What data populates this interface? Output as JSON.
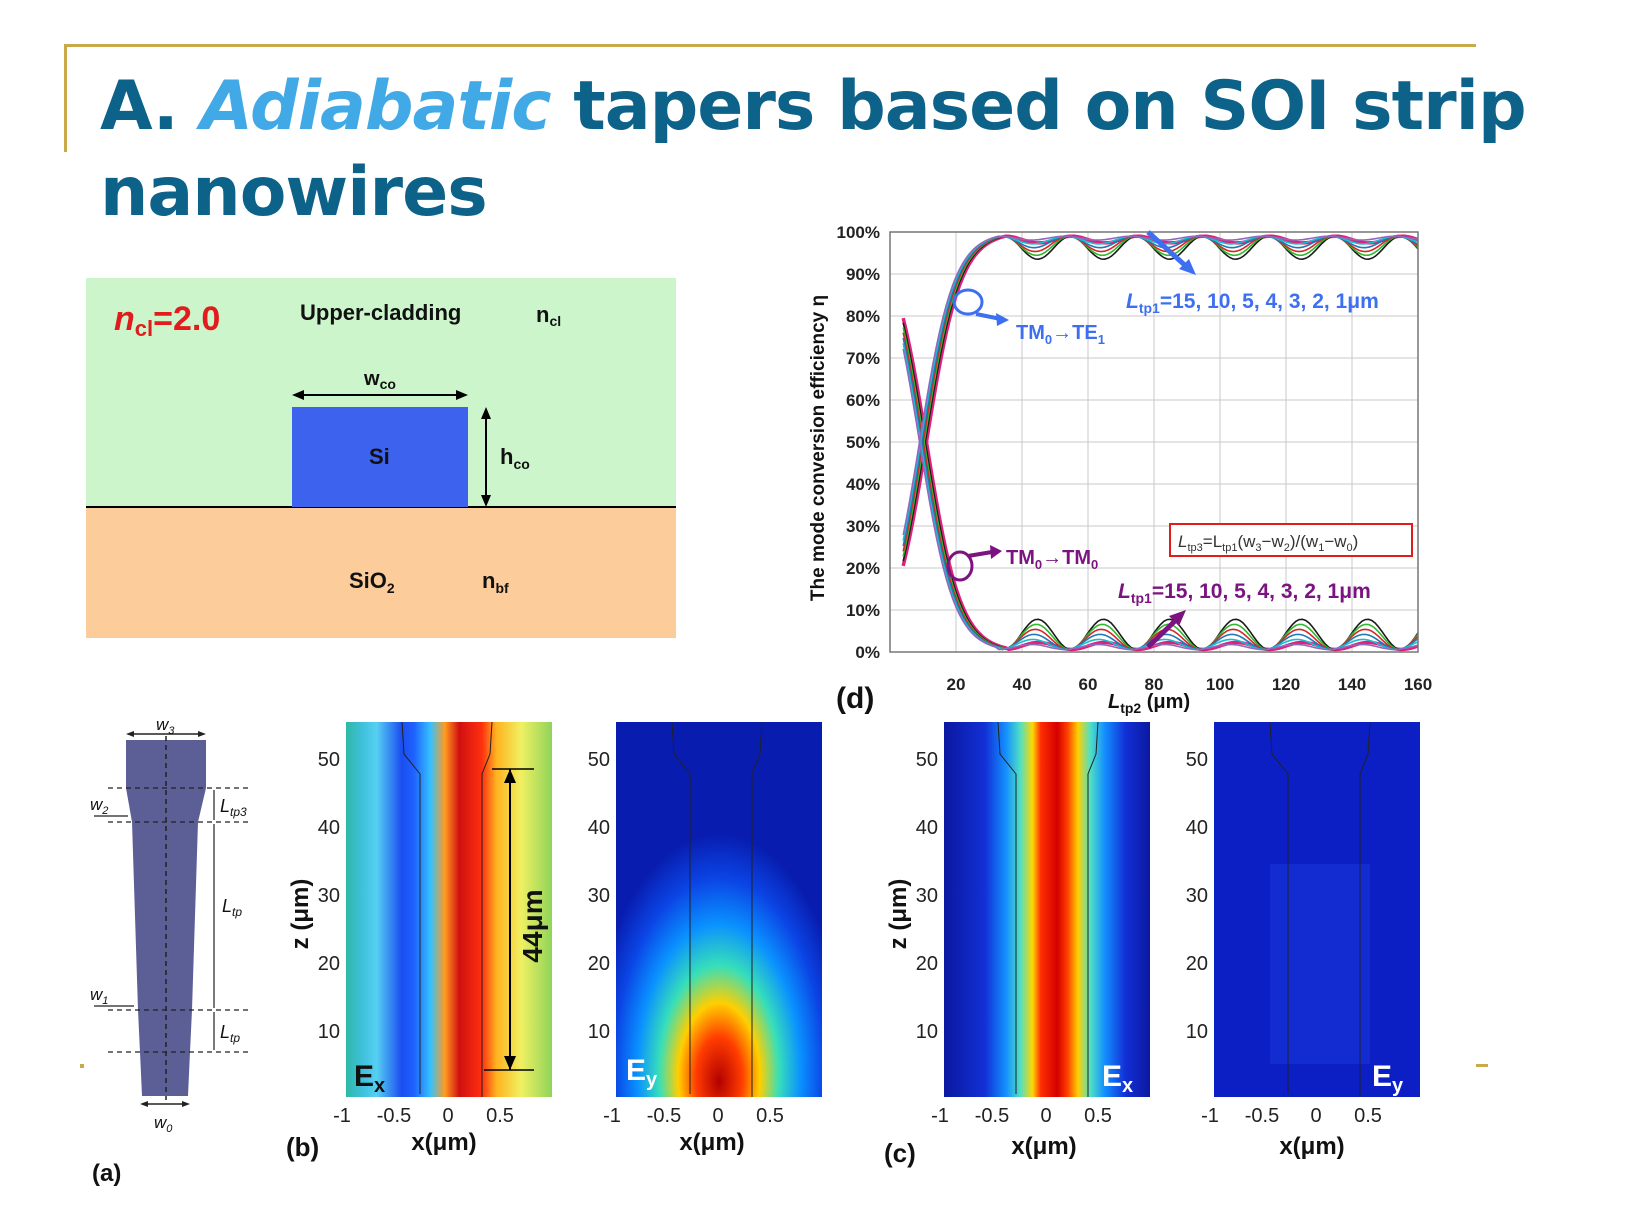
{
  "slide": {
    "title_prefix": "A.",
    "title_highlight": "Adiabatic",
    "title_rest": "tapers based on SOI strip",
    "title_line2": "nanowires",
    "accent_color": "#c9a94a",
    "title_color": "#0d6289",
    "highlight_color": "#41a9e6"
  },
  "cross_section": {
    "ncl_label": "n",
    "ncl_sub": "cl",
    "ncl_value": "=2.0",
    "upper_label": "Upper-cladding",
    "ncl_text": "n",
    "ncl_text_sub": "cl",
    "wco": "w",
    "wco_sub": "co",
    "core": "Si",
    "hco": "h",
    "hco_sub": "co",
    "substrate": "SiO",
    "substrate_sub": "2",
    "nbf": "n",
    "nbf_sub": "bf",
    "colors": {
      "cladding": "#ccf5cc",
      "core": "#3d62ee",
      "substrate": "#fdcc9b"
    }
  },
  "taper": {
    "w3": "w",
    "w3_sub": "3",
    "w2": "w",
    "w2_sub": "2",
    "w1": "w",
    "w1_sub": "1",
    "w0": "w",
    "w0_sub": "0",
    "ltp3": "L",
    "ltp3_sub": "tp3",
    "ltp_a": "L",
    "ltp_a_sub": "tp",
    "ltp_b": "L",
    "ltp_b_sub": "tp",
    "panel_label": "(a)",
    "fill_color": "#5b5f96"
  },
  "panel_b": {
    "label": "(b)",
    "ylabel": "z (μm)",
    "xlabel": "x(μm)",
    "ex": "E",
    "ex_sub": "x",
    "ey": "E",
    "ey_sub": "y",
    "length_annotation": "44μm",
    "yticks": [
      "50",
      "40",
      "30",
      "20",
      "10"
    ],
    "xticks": [
      "-1",
      "-0.5",
      "0",
      "0.5"
    ]
  },
  "panel_c": {
    "label": "(c)",
    "ylabel": "z (μm)",
    "xlabel": "x(μm)",
    "ex": "E",
    "ex_sub": "x",
    "ey": "E",
    "ey_sub": "y",
    "yticks": [
      "50",
      "40",
      "30",
      "20",
      "10"
    ],
    "xticks": [
      "-1",
      "-0.5",
      "0",
      "0.5"
    ]
  },
  "panel_d": {
    "label": "(d)",
    "ylabel": "The mode conversion efficiency η",
    "xlabel": "L",
    "xlabel_sub": "tp2",
    "xlabel_unit": " (μm)",
    "yticks": [
      "100%",
      "90%",
      "80%",
      "70%",
      "60%",
      "50%",
      "40%",
      "30%",
      "20%",
      "10%",
      "0%"
    ],
    "xticks": [
      "20",
      "40",
      "60",
      "80",
      "100",
      "120",
      "140",
      "160"
    ],
    "te_label": "TM",
    "te_label_sub": "0",
    "te_label_rest": "→TE",
    "te_label_sub2": "1",
    "tm_label": "TM",
    "tm_label_sub": "0",
    "tm_label_rest": "→TM",
    "tm_label_sub2": "0",
    "ltp1_top": "=15, 10, 5, 4, 3, 2, 1μm",
    "ltp1_bottom": "=15, 10, 5, 4, 3, 2, 1μm",
    "ltp1_name": "L",
    "ltp1_sub": "tp1",
    "formula": "L",
    "formula_sub1": "tp3",
    "formula_mid": "=L",
    "formula_sub2": "tp1",
    "formula_rest": "(w",
    "formula_w3": "3",
    "formula_m": "−w",
    "formula_w2": "2",
    "formula_d": ")/(w",
    "formula_w1": "1",
    "formula_m2": "−w",
    "formula_w0": "0",
    "formula_end": ")"
  },
  "chart_data": {
    "type": "line",
    "title": "",
    "xlabel": "Ltp2 (μm)",
    "ylabel": "The mode conversion efficiency η",
    "xlim": [
      0,
      160
    ],
    "ylim": [
      0,
      100
    ],
    "grid": true,
    "series_colors": [
      "#e0207a",
      "#1a1a1a",
      "#2db82d",
      "#d62728",
      "#1f77b4",
      "#17becf",
      "#9467bd",
      "#ff7f0e"
    ],
    "series_legend": [
      "15",
      "10",
      "5",
      "4",
      "3",
      "2",
      "1"
    ],
    "series_groups": [
      {
        "name": "TM0→TE1",
        "x": [
          5,
          10,
          20,
          30,
          40,
          60,
          80,
          100,
          120,
          140,
          160
        ],
        "y_range": [
          [
            32,
            68
          ],
          [
            50,
            50
          ],
          [
            80,
            80
          ],
          [
            92,
            95
          ],
          [
            98,
            99
          ],
          [
            94,
            99
          ],
          [
            95,
            99
          ],
          [
            94,
            99
          ],
          [
            94,
            99
          ],
          [
            94,
            99
          ],
          [
            94,
            99
          ]
        ]
      },
      {
        "name": "TM0→TM0",
        "x": [
          5,
          10,
          20,
          30,
          40,
          60,
          80,
          100,
          120,
          140,
          160
        ],
        "y_range": [
          [
            24,
            76
          ],
          [
            50,
            50
          ],
          [
            20,
            20
          ],
          [
            4,
            8
          ],
          [
            0,
            1
          ],
          [
            0,
            6
          ],
          [
            0,
            8
          ],
          [
            0,
            8
          ],
          [
            0,
            8
          ],
          [
            0,
            8
          ],
          [
            0,
            9
          ]
        ]
      }
    ]
  }
}
